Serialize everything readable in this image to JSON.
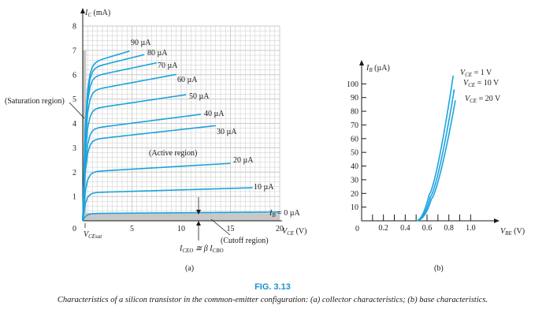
{
  "figure": {
    "number": "FIG. 3.13",
    "caption": "Characteristics of a silicon transistor in the common-emitter configuration: (a) collector characteristics; (b) base characteristics."
  },
  "colors": {
    "curve": "#1aa3de",
    "grid": "#c9c9c9",
    "shade": "#c8c8c8",
    "caption_title": "#1a8fd1"
  },
  "chart_data": [
    {
      "id": "a",
      "type": "line",
      "panel_label": "(a)",
      "ylabel_prefix": "I",
      "ylabel_sub": "C",
      "ylabel_unit": " (mA)",
      "xlabel_prefix": "V",
      "xlabel_sub": "CE",
      "xlabel_unit": " (V)",
      "xlim": [
        0,
        20
      ],
      "ylim": [
        0,
        8
      ],
      "x_ticks": [
        5,
        10,
        15,
        20
      ],
      "y_ticks": [
        1,
        2,
        3,
        4,
        5,
        6,
        7,
        8
      ],
      "origin_label": "0",
      "grid": true,
      "series": [
        {
          "name": "I_B = 0 µA",
          "label": "I",
          "label_sub": "B",
          "label_rest": " = 0 µA",
          "sat_current": 0.3,
          "slope": 0.003
        },
        {
          "name": "10 µA",
          "label": "10 µA",
          "sat_current": 1.15,
          "slope": 0.012
        },
        {
          "name": "20 µA",
          "label": "20 µA",
          "sat_current": 2.0,
          "slope": 0.024
        },
        {
          "name": "30 µA",
          "label": "30 µA",
          "sat_current": 3.3,
          "slope": 0.045
        },
        {
          "name": "40 µA",
          "label": "40 µA",
          "sat_current": 3.75,
          "slope": 0.052
        },
        {
          "name": "50 µA",
          "label": "50 µA",
          "sat_current": 4.55,
          "slope": 0.06
        },
        {
          "name": "60 µA",
          "label": "60 µA",
          "sat_current": 5.3,
          "slope": 0.075
        },
        {
          "name": "70 µA",
          "label": "70 µA",
          "sat_current": 5.85,
          "slope": 0.085
        },
        {
          "name": "80 µA",
          "label": "80 µA",
          "sat_current": 6.2,
          "slope": 0.1
        },
        {
          "name": "90 µA",
          "label": "90 µA",
          "sat_current": 6.4,
          "slope": 0.12
        }
      ],
      "annotations": {
        "active_region": "(Active region)",
        "saturation_region": "(Saturation region)",
        "cutoff_region": "(Cutoff region)",
        "vce_sat": "V",
        "vce_sat_sub": "CEsat",
        "iceo": "I",
        "iceo_sub": "CEO",
        "iceo_eq": " ≅ β I",
        "icbo_sub": "CBO"
      }
    },
    {
      "id": "b",
      "type": "line",
      "panel_label": "(b)",
      "ylabel_prefix": "I",
      "ylabel_sub": "B",
      "ylabel_unit": " (µA)",
      "xlabel_prefix": "V",
      "xlabel_sub": "BE",
      "xlabel_unit": " (V)",
      "xlim": [
        0,
        1.2
      ],
      "ylim": [
        0,
        110
      ],
      "x_ticks": [
        0.2,
        0.4,
        0.6,
        0.8,
        1.0
      ],
      "x_tick_labels": [
        "0.2",
        "0.4",
        "0.6",
        "0.8",
        "1.0"
      ],
      "y_ticks": [
        10,
        20,
        30,
        40,
        50,
        60,
        70,
        80,
        90,
        100
      ],
      "origin_label": "0",
      "series": [
        {
          "name": "V_CE = 1 V",
          "label": "V",
          "label_sub": "CE",
          "label_rest": " = 1 V",
          "v_knee": 0.56,
          "v_top": 0.84,
          "i_top": 106
        },
        {
          "name": "V_CE = 10 V",
          "label": "V",
          "label_sub": "CE",
          "label_rest": " = 10 V",
          "v_knee": 0.57,
          "v_top": 0.85,
          "i_top": 96
        },
        {
          "name": "V_CE = 20 V",
          "label": "V",
          "label_sub": "CE",
          "label_rest": " = 20 V",
          "v_knee": 0.58,
          "v_top": 0.86,
          "i_top": 88
        }
      ]
    }
  ]
}
